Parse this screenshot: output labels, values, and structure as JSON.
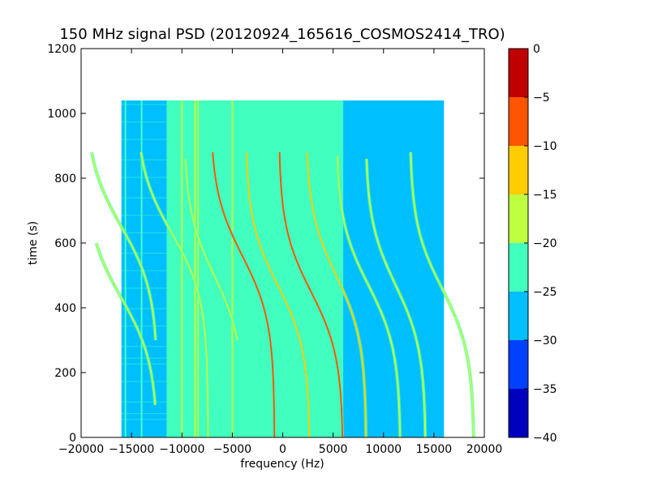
{
  "chart_data": {
    "type": "heatmap",
    "title": "150 MHz signal PSD (20120924_165616_COSMOS2414_TRO)",
    "xlabel": "frequency (Hz)",
    "ylabel": "time (s)",
    "xlim": [
      -20000,
      20000
    ],
    "ylim": [
      0,
      1200
    ],
    "xticks": [
      -20000,
      -15000,
      -10000,
      -5000,
      0,
      5000,
      10000,
      15000,
      20000
    ],
    "yticks": [
      0,
      200,
      400,
      600,
      800,
      1000,
      1200
    ],
    "data_extent": {
      "x": [
        -16000,
        16000
      ],
      "y": [
        0,
        1040
      ]
    },
    "background_bands": [
      {
        "x": [
          -16000,
          -11500
        ],
        "level": -27.5
      },
      {
        "x": [
          -11500,
          3500
        ],
        "level": -22.5
      },
      {
        "x": [
          3500,
          6000
        ],
        "level": -25
      },
      {
        "x": [
          6000,
          16000
        ],
        "level": -27.5
      }
    ],
    "vertical_lines": [
      {
        "x": -15600,
        "level": -22.5
      },
      {
        "x": -14000,
        "level": -22.5
      },
      {
        "x": -11000,
        "level": -22.5
      },
      {
        "x": -10000,
        "level": -17.5
      },
      {
        "x": -8700,
        "level": -17.5
      },
      {
        "x": -8400,
        "level": -17.5
      },
      {
        "x": -5000,
        "level": -17.5
      }
    ],
    "doppler_tracks": [
      {
        "center": -16000,
        "t_center": 650,
        "amplitude": 3600,
        "level": -17.5,
        "t_range": [
          300,
          880
        ]
      },
      {
        "center": -16000,
        "t_center": 430,
        "amplitude": 3600,
        "level": -20,
        "t_range": [
          100,
          600
        ]
      },
      {
        "center": -11000,
        "t_center": 630,
        "amplitude": 3600,
        "level": -17.5,
        "t_range": [
          0,
          880
        ]
      },
      {
        "center": -6800,
        "t_center": 500,
        "amplitude": 3000,
        "level": -17.5,
        "t_range": [
          300,
          860
        ]
      },
      {
        "center": -4000,
        "t_center": 560,
        "amplitude": 3200,
        "level": -7.5,
        "t_range": [
          0,
          880
        ]
      },
      {
        "center": -500,
        "t_center": 470,
        "amplitude": 3200,
        "level": -12.5,
        "t_range": [
          0,
          880
        ]
      },
      {
        "center": 2800,
        "t_center": 450,
        "amplitude": 3200,
        "level": -7.5,
        "t_range": [
          0,
          880
        ]
      },
      {
        "center": 5300,
        "t_center": 500,
        "amplitude": 3000,
        "level": -12.5,
        "t_range": [
          0,
          880
        ]
      },
      {
        "center": 8500,
        "t_center": 470,
        "amplitude": 3200,
        "level": -17.5,
        "t_range": [
          0,
          870
        ]
      },
      {
        "center": 11200,
        "t_center": 470,
        "amplitude": 3000,
        "level": -20,
        "t_range": [
          0,
          860
        ]
      },
      {
        "center": 15800,
        "t_center": 460,
        "amplitude": 3200,
        "level": -17.5,
        "t_range": [
          0,
          880
        ]
      }
    ],
    "colorbar": {
      "min": -40,
      "max": 0,
      "ticks": [
        -40,
        -35,
        -30,
        -25,
        -20,
        -15,
        -10,
        -5,
        0
      ],
      "colors": [
        "#0000bf",
        "#0040ff",
        "#00bfff",
        "#40ffbf",
        "#bfff40",
        "#ffcc00",
        "#ff5500",
        "#c00000"
      ]
    }
  }
}
